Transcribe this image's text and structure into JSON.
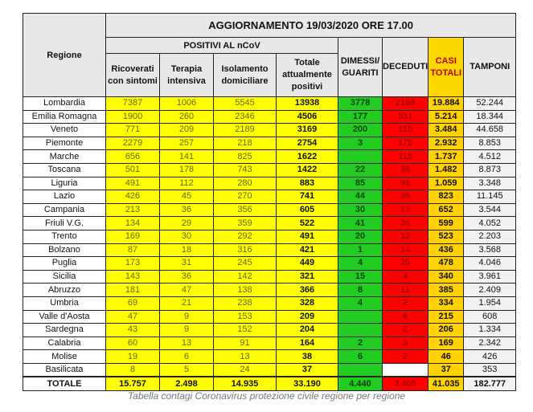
{
  "header": {
    "title": "AGGIORNAMENTO 19/03/2020 ORE 17.00",
    "regione": "Regione",
    "positivi": "POSITIVI AL nCoV",
    "ricoverati": "Ricoverati con sintomi",
    "terapia": "Terapia intensiva",
    "isolamento": "Isolamento domiciliare",
    "totale_positivi": "Totale attualmente positivi",
    "dimessi": "DIMESSI/ GUARITI",
    "deceduti": "DECEDUTI",
    "casi": "CASI TOTALI",
    "tamponi": "TAMPONI"
  },
  "colors": {
    "positivi": "#ffff00",
    "dimessi": "#22cc22",
    "deceduti": "#ff0000",
    "casi": "#ffd200",
    "header": "#e8e8e8"
  },
  "rows": [
    [
      "Lombardia",
      "7387",
      "1006",
      "5545",
      "13938",
      "3778",
      "2168",
      "19.884",
      "52.244"
    ],
    [
      "Emilia Romagna",
      "1900",
      "260",
      "2346",
      "4506",
      "177",
      "531",
      "5.214",
      "18.344"
    ],
    [
      "Veneto",
      "771",
      "209",
      "2189",
      "3169",
      "200",
      "115",
      "3.484",
      "44.658"
    ],
    [
      "Piemonte",
      "2279",
      "257",
      "218",
      "2754",
      "3",
      "175",
      "2.932",
      "8.853"
    ],
    [
      "Marche",
      "656",
      "141",
      "825",
      "1622",
      "",
      "115",
      "1.737",
      "4.512"
    ],
    [
      "Toscana",
      "501",
      "178",
      "743",
      "1422",
      "22",
      "38",
      "1.482",
      "8.873"
    ],
    [
      "Liguria",
      "491",
      "112",
      "280",
      "883",
      "85",
      "91",
      "1.059",
      "3.348"
    ],
    [
      "Lazio",
      "426",
      "45",
      "270",
      "741",
      "44",
      "38",
      "823",
      "11.145"
    ],
    [
      "Campania",
      "213",
      "36",
      "356",
      "605",
      "30",
      "17",
      "652",
      "3.544"
    ],
    [
      "Friuli V.G.",
      "134",
      "29",
      "359",
      "522",
      "41",
      "36",
      "599",
      "4.052"
    ],
    [
      "Trento",
      "169",
      "30",
      "292",
      "491",
      "20",
      "12",
      "523",
      "2.203"
    ],
    [
      "Bolzano",
      "87",
      "18",
      "316",
      "421",
      "1",
      "14",
      "436",
      "3.568"
    ],
    [
      "Puglia",
      "173",
      "31",
      "245",
      "449",
      "4",
      "25",
      "478",
      "4.046"
    ],
    [
      "Sicilia",
      "143",
      "36",
      "142",
      "321",
      "15",
      "4",
      "340",
      "3.961"
    ],
    [
      "Abruzzo",
      "181",
      "47",
      "138",
      "366",
      "8",
      "11",
      "385",
      "2.409"
    ],
    [
      "Umbria",
      "69",
      "21",
      "238",
      "328",
      "4",
      "2",
      "334",
      "1.954"
    ],
    [
      "Valle d'Aosta",
      "47",
      "9",
      "153",
      "209",
      "",
      "6",
      "215",
      "608"
    ],
    [
      "Sardegna",
      "43",
      "9",
      "152",
      "204",
      "",
      "2",
      "206",
      "1.334"
    ],
    [
      "Calabria",
      "60",
      "13",
      "91",
      "164",
      "2",
      "3",
      "169",
      "2.342"
    ],
    [
      "Molise",
      "19",
      "6",
      "13",
      "38",
      "6",
      "2",
      "46",
      "426"
    ],
    [
      "Basilicata",
      "8",
      "5",
      "24",
      "37",
      "",
      "",
      "37",
      "353"
    ]
  ],
  "total": [
    "TOTALE",
    "15.757",
    "2.498",
    "14.935",
    "33.190",
    "4.440",
    "3.405",
    "41.035",
    "182.777"
  ],
  "caption": "Tabella contagi Coronavirus protezione civile regione per regione"
}
